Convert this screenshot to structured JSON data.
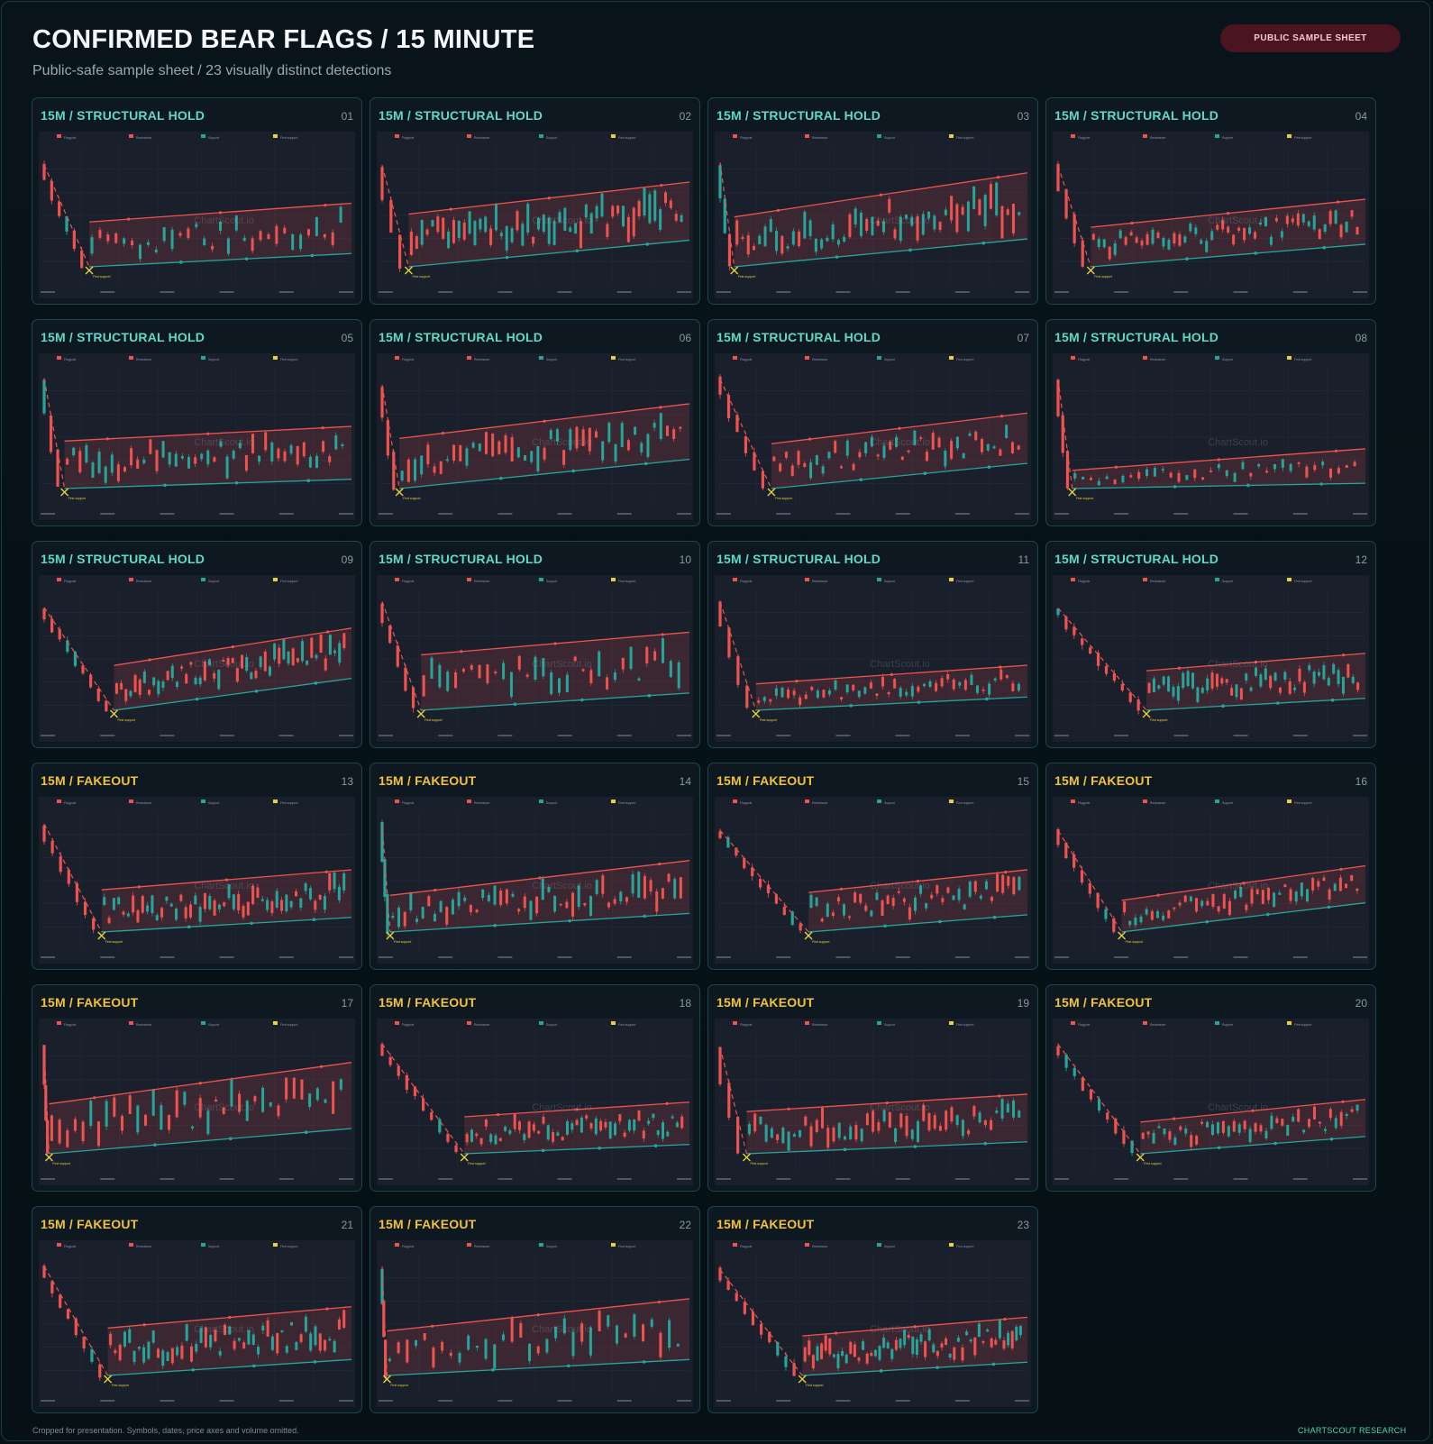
{
  "page": {
    "title": "CONFIRMED BEAR FLAGS / 15 MINUTE",
    "subtitle": "Public-safe sample sheet / 23 visually distinct detections",
    "badge": "PUBLIC SAMPLE SHEET",
    "footer_note": "Cropped for presentation. Symbols, dates, price axes and volume omitted.",
    "footer_brand": "CHARTSCOUT RESEARCH",
    "watermark": "ChartScout.io",
    "marker_label": "First support",
    "legend": [
      "Flagpole",
      "Resistance",
      "Support",
      "First support"
    ]
  },
  "colors": {
    "bull": "#26a69a",
    "bear": "#ef5350",
    "resistance": "#ef5350",
    "support": "#26a69a",
    "first_support": "#e6d23c",
    "hold_label": "#5fd9c9",
    "fakeout_label": "#f2c23c"
  },
  "chart_data": [
    {
      "type": "candlestick",
      "label": "15M / STRUCTURAL HOLD",
      "category": "hold",
      "number": "01",
      "pole_len": 0.14,
      "flag_slope": 0.2,
      "flag_width": 0.34,
      "volatility": 0.55,
      "seed": 11
    },
    {
      "type": "candlestick",
      "label": "15M / STRUCTURAL HOLD",
      "category": "hold",
      "number": "02",
      "pole_len": 0.08,
      "flag_slope": 0.4,
      "flag_width": 0.4,
      "volatility": 0.75,
      "seed": 23
    },
    {
      "type": "candlestick",
      "label": "15M / STRUCTURAL HOLD",
      "category": "hold",
      "number": "03",
      "pole_len": 0.04,
      "flag_slope": 0.42,
      "flag_width": 0.46,
      "volatility": 0.7,
      "seed": 37
    },
    {
      "type": "candlestick",
      "label": "15M / STRUCTURAL HOLD",
      "category": "hold",
      "number": "04",
      "pole_len": 0.1,
      "flag_slope": 0.34,
      "flag_width": 0.3,
      "volatility": 0.45,
      "seed": 41
    },
    {
      "type": "candlestick",
      "label": "15M / STRUCTURAL HOLD",
      "category": "hold",
      "number": "05",
      "pole_len": 0.06,
      "flag_slope": 0.14,
      "flag_width": 0.36,
      "volatility": 0.6,
      "seed": 53
    },
    {
      "type": "candlestick",
      "label": "15M / STRUCTURAL HOLD",
      "category": "hold",
      "number": "06",
      "pole_len": 0.05,
      "flag_slope": 0.44,
      "flag_width": 0.38,
      "volatility": 0.65,
      "seed": 67
    },
    {
      "type": "candlestick",
      "label": "15M / STRUCTURAL HOLD",
      "category": "hold",
      "number": "07",
      "pole_len": 0.16,
      "flag_slope": 0.38,
      "flag_width": 0.34,
      "volatility": 0.5,
      "seed": 71
    },
    {
      "type": "candlestick",
      "label": "15M / STRUCTURAL HOLD",
      "category": "hold",
      "number": "08",
      "pole_len": 0.04,
      "flag_slope": 0.08,
      "flag_width": 0.22,
      "volatility": 0.45,
      "seed": 83
    },
    {
      "type": "candlestick",
      "label": "15M / STRUCTURAL HOLD",
      "category": "hold",
      "number": "09",
      "pole_len": 0.22,
      "flag_slope": 0.48,
      "flag_width": 0.34,
      "volatility": 0.55,
      "seed": 97
    },
    {
      "type": "candlestick",
      "label": "15M / STRUCTURAL HOLD",
      "category": "hold",
      "number": "10",
      "pole_len": 0.12,
      "flag_slope": 0.26,
      "flag_width": 0.42,
      "volatility": 0.6,
      "seed": 101
    },
    {
      "type": "candlestick",
      "label": "15M / STRUCTURAL HOLD",
      "category": "hold",
      "number": "11",
      "pole_len": 0.11,
      "flag_slope": 0.2,
      "flag_width": 0.2,
      "volatility": 0.45,
      "seed": 113
    },
    {
      "type": "candlestick",
      "label": "15M / STRUCTURAL HOLD",
      "category": "hold",
      "number": "12",
      "pole_len": 0.28,
      "flag_slope": 0.18,
      "flag_width": 0.3,
      "volatility": 0.55,
      "seed": 127
    },
    {
      "type": "candlestick",
      "label": "15M / FAKEOUT",
      "category": "fakeout",
      "number": "13",
      "pole_len": 0.18,
      "flag_slope": 0.22,
      "flag_width": 0.32,
      "volatility": 0.55,
      "seed": 131
    },
    {
      "type": "candlestick",
      "label": "15M / FAKEOUT",
      "category": "fakeout",
      "number": "14",
      "pole_len": 0.02,
      "flag_slope": 0.28,
      "flag_width": 0.36,
      "volatility": 0.7,
      "seed": 149
    },
    {
      "type": "candlestick",
      "label": "15M / FAKEOUT",
      "category": "fakeout",
      "number": "15",
      "pole_len": 0.28,
      "flag_slope": 0.26,
      "flag_width": 0.3,
      "volatility": 0.55,
      "seed": 151
    },
    {
      "type": "candlestick",
      "label": "15M / FAKEOUT",
      "category": "fakeout",
      "number": "16",
      "pole_len": 0.2,
      "flag_slope": 0.44,
      "flag_width": 0.24,
      "volatility": 0.55,
      "seed": 163
    },
    {
      "type": "candlestick",
      "label": "15M / FAKEOUT",
      "category": "fakeout",
      "number": "17",
      "pole_len": 0.01,
      "flag_slope": 0.38,
      "flag_width": 0.46,
      "volatility": 0.7,
      "seed": 173
    },
    {
      "type": "candlestick",
      "label": "15M / FAKEOUT",
      "category": "fakeout",
      "number": "18",
      "pole_len": 0.26,
      "flag_slope": 0.14,
      "flag_width": 0.28,
      "volatility": 0.55,
      "seed": 181
    },
    {
      "type": "candlestick",
      "label": "15M / FAKEOUT",
      "category": "fakeout",
      "number": "19",
      "pole_len": 0.08,
      "flag_slope": 0.18,
      "flag_width": 0.32,
      "volatility": 0.65,
      "seed": 191
    },
    {
      "type": "candlestick",
      "label": "15M / FAKEOUT",
      "category": "fakeout",
      "number": "20",
      "pole_len": 0.26,
      "flag_slope": 0.26,
      "flag_width": 0.24,
      "volatility": 0.5,
      "seed": 199
    },
    {
      "type": "candlestick",
      "label": "15M / FAKEOUT",
      "category": "fakeout",
      "number": "21",
      "pole_len": 0.2,
      "flag_slope": 0.24,
      "flag_width": 0.36,
      "volatility": 0.55,
      "seed": 211
    },
    {
      "type": "candlestick",
      "label": "15M / FAKEOUT",
      "category": "fakeout",
      "number": "22",
      "pole_len": 0.01,
      "flag_slope": 0.24,
      "flag_width": 0.42,
      "volatility": 0.75,
      "seed": 223
    },
    {
      "type": "candlestick",
      "label": "15M / FAKEOUT",
      "category": "fakeout",
      "number": "23",
      "pole_len": 0.26,
      "flag_slope": 0.2,
      "flag_width": 0.3,
      "volatility": 0.55,
      "seed": 227
    }
  ]
}
